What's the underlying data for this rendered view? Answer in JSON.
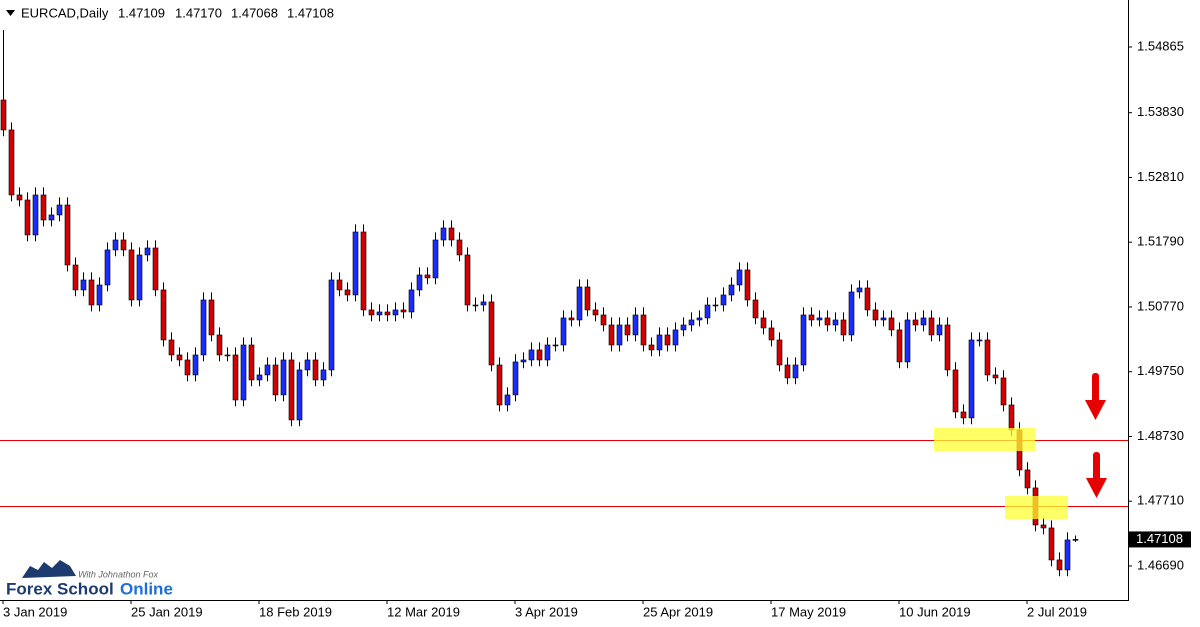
{
  "chart_data": {
    "type": "candlestick",
    "title": "EURCAD,Daily",
    "ohlc_label": [
      "1.47109",
      "1.47170",
      "1.47068",
      "1.47108"
    ],
    "bull_color": "#1a2cff",
    "bear_color": "#d40000",
    "wick_color": "#000000",
    "level_color": "#e60000",
    "levels": [
      1.48675,
      1.47636
    ],
    "xlim": [
      -0.375,
      140.625
    ],
    "xticks": [
      {
        "value": 0,
        "label": "3 Jan 2019"
      },
      {
        "value": 16,
        "label": "25 Jan 2019"
      },
      {
        "value": 32,
        "label": "18 Feb 2019"
      },
      {
        "value": 48,
        "label": "12 Mar 2019"
      },
      {
        "value": 64,
        "label": "3 Apr 2019"
      },
      {
        "value": 80,
        "label": "25 Apr 2019"
      },
      {
        "value": 96,
        "label": "17 May 2019"
      },
      {
        "value": 112,
        "label": "10 Jun 2019"
      },
      {
        "value": 128,
        "label": "2 Jul 2019"
      }
    ],
    "ylim": [
      1.46154,
      1.55605
    ],
    "yticks": [
      1.54865,
      {
        "value": 1.5383,
        "label": "1.53830"
      },
      {
        "value": 1.5281,
        "label": "1.52810"
      },
      {
        "value": 1.5179,
        "label": "1.51790"
      },
      {
        "value": 1.5077,
        "label": "1.50770"
      },
      {
        "value": 1.4975,
        "label": "1.49750"
      },
      {
        "value": 1.4873,
        "label": "1.48730"
      },
      {
        "value": 1.4771,
        "label": "1.47710"
      },
      {
        "value": 1.4669,
        "label": "1.46690"
      }
    ],
    "open": [
      1.5403,
      1.53558,
      1.52534,
      1.52455,
      1.51904,
      1.52534,
      1.5214,
      1.52219,
      1.52376,
      1.51431,
      1.51038,
      1.51195,
      1.50801,
      1.51116,
      1.51668,
      1.51825,
      1.51668,
      1.5088,
      1.51589,
      1.51699,
      1.51038,
      1.5025,
      1.50014,
      1.49935,
      1.49699,
      1.50014,
      1.5088,
      1.50329,
      1.50014,
      1.50014,
      1.49305,
      1.50171,
      1.4962,
      1.49699,
      1.49856,
      1.49384,
      1.49935,
      1.4899,
      1.49778,
      1.49935,
      1.4962,
      1.49778,
      1.51195,
      1.51038,
      1.50959,
      1.51951,
      1.50723,
      1.50644,
      1.50691,
      1.50644,
      1.50723,
      1.50691,
      1.51038,
      1.51274,
      1.51227,
      1.51825,
      1.52014,
      1.51825,
      1.51589,
      1.50801,
      1.50801,
      1.50849,
      1.49856,
      1.49226,
      1.49384,
      1.49904,
      1.49935,
      1.50093,
      1.49935,
      1.50171,
      1.50171,
      1.50597,
      1.50565,
      1.51085,
      1.50723,
      1.50644,
      1.50486,
      1.50171,
      1.50486,
      1.50329,
      1.50644,
      1.50171,
      1.50093,
      1.50329,
      1.50171,
      1.50408,
      1.50486,
      1.50565,
      1.50597,
      1.50801,
      1.50801,
      1.50959,
      1.51116,
      1.51353,
      1.5088,
      1.50597,
      1.50439,
      1.5025,
      1.49856,
      1.49652,
      1.49856,
      1.50644,
      1.50565,
      1.50597,
      1.50486,
      1.50565,
      1.50329,
      1.51006,
      1.51069,
      1.50723,
      1.50565,
      1.50597,
      1.50408,
      1.49904,
      1.50565,
      1.50486,
      1.50597,
      1.50329,
      1.50486,
      1.49778,
      1.49116,
      1.49022,
      1.5025,
      1.5025,
      1.49699,
      1.49652,
      1.49226,
      1.48833,
      1.48203,
      1.47919,
      1.47336,
      1.47289,
      1.46785,
      1.46628,
      1.47109
    ],
    "high": [
      1.55133,
      1.53678,
      1.52654,
      1.52575,
      1.52654,
      1.52654,
      1.52339,
      1.52496,
      1.52496,
      1.51551,
      1.51315,
      1.51315,
      1.51236,
      1.51788,
      1.51945,
      1.51945,
      1.51788,
      1.51709,
      1.51819,
      1.51819,
      1.51158,
      1.5037,
      1.50134,
      1.50055,
      1.50134,
      1.51,
      1.51,
      1.50449,
      1.50134,
      1.50134,
      1.50291,
      1.50291,
      1.49819,
      1.49976,
      1.49976,
      1.50055,
      1.50055,
      1.49898,
      1.50055,
      1.50055,
      1.49898,
      1.51315,
      1.51315,
      1.51158,
      1.52071,
      1.52071,
      1.50843,
      1.50811,
      1.50811,
      1.50843,
      1.50843,
      1.51158,
      1.51394,
      1.51394,
      1.51945,
      1.52134,
      1.52134,
      1.51945,
      1.51709,
      1.50921,
      1.50969,
      1.50969,
      1.49976,
      1.49504,
      1.50024,
      1.50055,
      1.50213,
      1.50213,
      1.50291,
      1.50291,
      1.50717,
      1.50717,
      1.51205,
      1.51205,
      1.50843,
      1.50764,
      1.50606,
      1.50606,
      1.50606,
      1.50764,
      1.50764,
      1.50291,
      1.50449,
      1.50449,
      1.50528,
      1.50606,
      1.50685,
      1.50717,
      1.50921,
      1.50921,
      1.51079,
      1.51236,
      1.51473,
      1.51473,
      1.51,
      1.50717,
      1.50559,
      1.5037,
      1.49976,
      1.49976,
      1.50764,
      1.50764,
      1.50717,
      1.50717,
      1.50685,
      1.50685,
      1.51126,
      1.51189,
      1.51189,
      1.50843,
      1.50717,
      1.50717,
      1.50528,
      1.50685,
      1.50685,
      1.50717,
      1.50717,
      1.50606,
      1.50606,
      1.49898,
      1.49236,
      1.5037,
      1.5037,
      1.5037,
      1.49819,
      1.49772,
      1.49346,
      1.48953,
      1.48323,
      1.48039,
      1.47456,
      1.47409,
      1.46905,
      1.4722,
      1.4717
    ],
    "low": [
      1.53458,
      1.52434,
      1.52355,
      1.51804,
      1.51804,
      1.5204,
      1.5204,
      1.52119,
      1.51331,
      1.50938,
      1.50938,
      1.50701,
      1.50701,
      1.51016,
      1.51568,
      1.51568,
      1.5078,
      1.5078,
      1.51489,
      1.50938,
      1.5015,
      1.49914,
      1.49835,
      1.49599,
      1.49599,
      1.49914,
      1.50229,
      1.49914,
      1.49914,
      1.49205,
      1.49205,
      1.4952,
      1.4952,
      1.49599,
      1.49284,
      1.49284,
      1.4889,
      1.4889,
      1.49678,
      1.4952,
      1.4952,
      1.49678,
      1.50938,
      1.50859,
      1.50859,
      1.50623,
      1.50544,
      1.50544,
      1.50544,
      1.50544,
      1.50591,
      1.50591,
      1.50938,
      1.51127,
      1.51127,
      1.51725,
      1.51725,
      1.51489,
      1.50701,
      1.50701,
      1.50701,
      1.49756,
      1.49126,
      1.49126,
      1.49284,
      1.49804,
      1.49835,
      1.49835,
      1.49835,
      1.50071,
      1.50071,
      1.50465,
      1.50465,
      1.50623,
      1.50544,
      1.50386,
      1.50071,
      1.50071,
      1.50229,
      1.50229,
      1.50071,
      1.49993,
      1.49993,
      1.50071,
      1.50071,
      1.50308,
      1.50386,
      1.50465,
      1.50497,
      1.50701,
      1.50701,
      1.50859,
      1.51016,
      1.5078,
      1.50497,
      1.50339,
      1.5015,
      1.49756,
      1.49552,
      1.49552,
      1.49756,
      1.50465,
      1.50465,
      1.50386,
      1.50386,
      1.50229,
      1.50229,
      1.50906,
      1.50623,
      1.50465,
      1.50465,
      1.50308,
      1.49804,
      1.49804,
      1.50386,
      1.50386,
      1.50229,
      1.50229,
      1.49678,
      1.49016,
      1.48922,
      1.48922,
      1.5015,
      1.49599,
      1.49552,
      1.49126,
      1.48733,
      1.48103,
      1.47819,
      1.47236,
      1.47189,
      1.46685,
      1.46528,
      1.46528,
      1.47068
    ],
    "close": [
      1.53558,
      1.52534,
      1.52455,
      1.51904,
      1.52534,
      1.5214,
      1.52219,
      1.52376,
      1.51431,
      1.51038,
      1.51195,
      1.50801,
      1.51116,
      1.51668,
      1.51825,
      1.51668,
      1.5088,
      1.51589,
      1.51699,
      1.51038,
      1.5025,
      1.50014,
      1.49935,
      1.49699,
      1.50014,
      1.5088,
      1.50329,
      1.50014,
      1.50014,
      1.49305,
      1.50171,
      1.4962,
      1.49699,
      1.49856,
      1.49384,
      1.49935,
      1.4899,
      1.49778,
      1.49935,
      1.4962,
      1.49778,
      1.51195,
      1.51038,
      1.50959,
      1.51951,
      1.50723,
      1.50644,
      1.50691,
      1.50644,
      1.50723,
      1.50691,
      1.51038,
      1.51274,
      1.51227,
      1.51825,
      1.52014,
      1.51825,
      1.51589,
      1.50801,
      1.50801,
      1.50849,
      1.49856,
      1.49226,
      1.49384,
      1.49904,
      1.49935,
      1.50093,
      1.49935,
      1.50171,
      1.50171,
      1.50597,
      1.50565,
      1.51085,
      1.50723,
      1.50644,
      1.50486,
      1.50171,
      1.50486,
      1.50329,
      1.50644,
      1.50171,
      1.50093,
      1.50329,
      1.50171,
      1.50408,
      1.50486,
      1.50565,
      1.50597,
      1.50801,
      1.50801,
      1.50959,
      1.51116,
      1.51353,
      1.5088,
      1.50597,
      1.50439,
      1.5025,
      1.49856,
      1.49652,
      1.49856,
      1.50644,
      1.50565,
      1.50597,
      1.50486,
      1.50565,
      1.50329,
      1.51006,
      1.51069,
      1.50723,
      1.50565,
      1.50597,
      1.50408,
      1.49904,
      1.50565,
      1.50486,
      1.50597,
      1.50329,
      1.50486,
      1.49778,
      1.49116,
      1.49022,
      1.5025,
      1.5025,
      1.49699,
      1.49652,
      1.49226,
      1.48833,
      1.48203,
      1.47919,
      1.47336,
      1.47289,
      1.46785,
      1.46628,
      1.471,
      1.47108
    ]
  },
  "logo": {
    "tagline": "With Johnathon Fox",
    "brand_1": "Forex School",
    "brand_2": "Online"
  }
}
